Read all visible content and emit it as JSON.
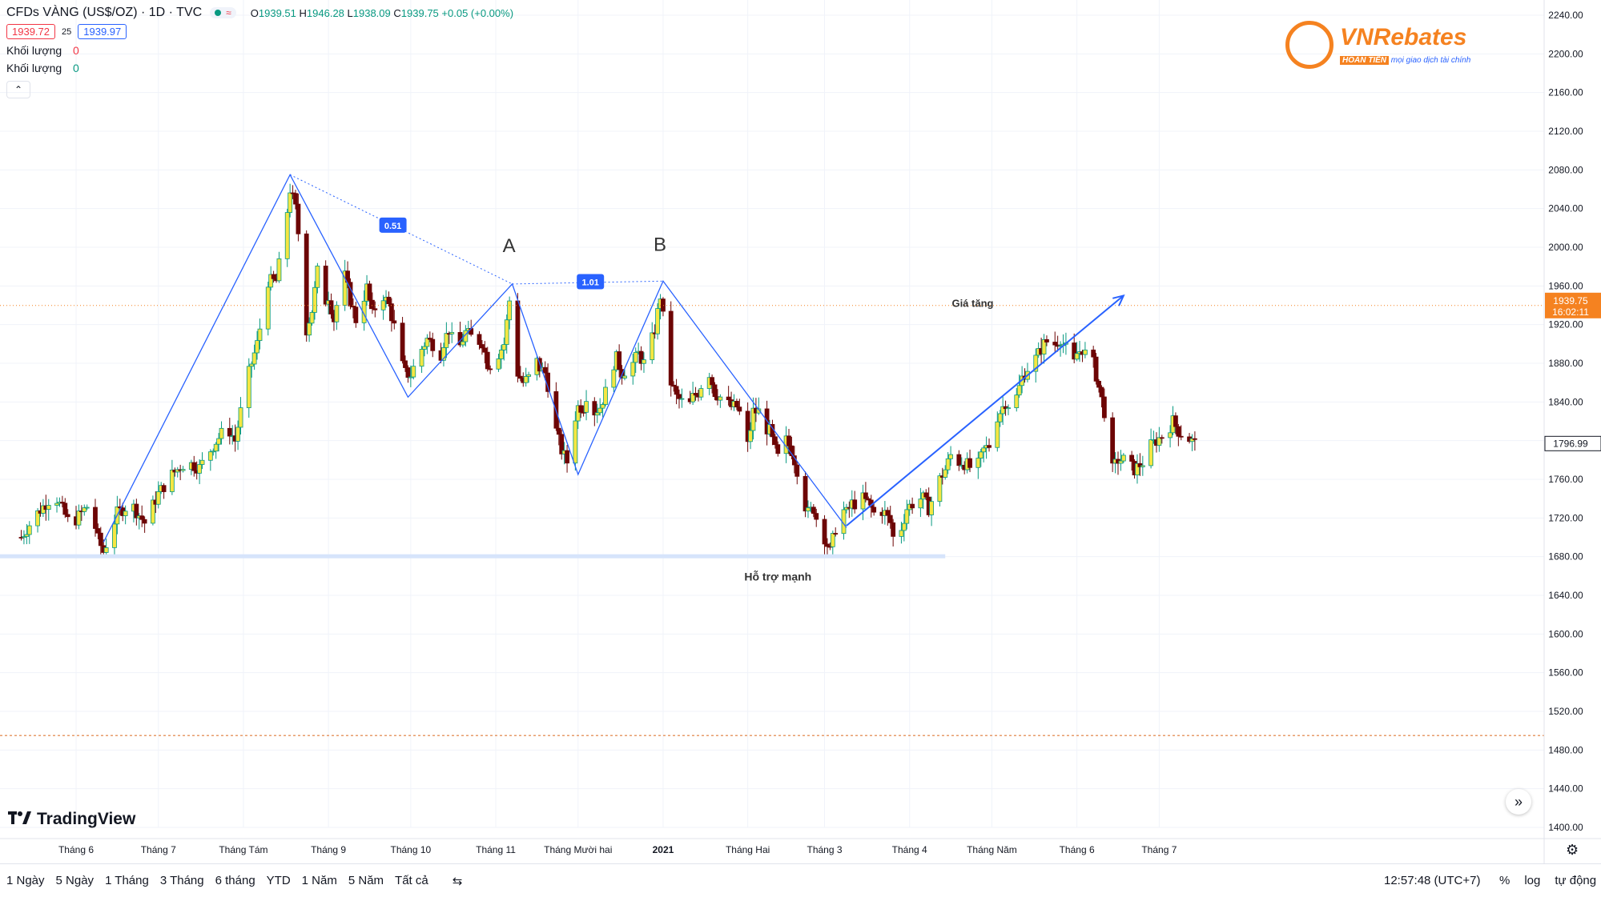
{
  "header": {
    "symbol": "CFDs VÀNG (US$/OZ) · 1D · TVC",
    "ohlc": {
      "open_label": "O",
      "open": "1939.51",
      "high_label": "H",
      "high": "1946.28",
      "low_label": "L",
      "low": "1938.09",
      "close_label": "C",
      "close": "1939.75",
      "change": "+0.05 (+0.00%)"
    },
    "bid": "1939.72",
    "spread": "25",
    "ask": "1939.97",
    "volume_rows": [
      {
        "label": "Khối lượng",
        "value": "0",
        "color": "#f23645"
      },
      {
        "label": "Khối lượng",
        "value": "0",
        "color": "#089981"
      }
    ]
  },
  "brand": {
    "name": "VNRebates",
    "badge": "HOÀN TIỀN",
    "tagline": "mọi giao dịch tài chính"
  },
  "tv_logo": "TradingView",
  "bottom": {
    "periods": [
      "1 Ngày",
      "5 Ngày",
      "1 Tháng",
      "3 Tháng",
      "6 tháng",
      "YTD",
      "1 Năm",
      "5 Năm",
      "Tất cả"
    ],
    "time": "12:57:48 (UTC+7)",
    "percent": "%",
    "log": "log",
    "auto": "tự động"
  },
  "colors": {
    "up": "#089981",
    "down": "#6d0505",
    "up_body": "#f5e642",
    "pattern": "#2962ff",
    "price_line": "#f58220"
  },
  "chart_data": {
    "type": "candlestick",
    "title": "CFDs VÀNG (US$/OZ)",
    "interval": "1D",
    "y_ticks": [
      2240,
      2200,
      2160,
      2120,
      2080,
      2040,
      2000,
      1960,
      1920,
      1880,
      1840,
      1800,
      1760,
      1720,
      1680,
      1640,
      1600,
      1560,
      1520,
      1480,
      1440,
      1400
    ],
    "ylim": [
      1400,
      2240
    ],
    "x_ticks": [
      {
        "label": "Tháng 6",
        "day": 0
      },
      {
        "label": "Tháng 7",
        "day": 30
      },
      {
        "label": "Tháng Tám",
        "day": 61
      },
      {
        "label": "Tháng 9",
        "day": 92
      },
      {
        "label": "Tháng 10",
        "day": 122
      },
      {
        "label": "Tháng 11",
        "day": 153
      },
      {
        "label": "Tháng Mười hai",
        "day": 183
      },
      {
        "label": "2021",
        "day": 214
      },
      {
        "label": "Tháng Hai",
        "day": 245
      },
      {
        "label": "Tháng 3",
        "day": 273
      },
      {
        "label": "Tháng 4",
        "day": 304
      },
      {
        "label": "Tháng Năm",
        "day": 334
      },
      {
        "label": "Tháng 6",
        "day": 365
      },
      {
        "label": "Tháng 7",
        "day": 395
      }
    ],
    "price_path": [
      [
        -20,
        1700
      ],
      [
        -15,
        1722
      ],
      [
        -8,
        1745
      ],
      [
        -2,
        1712
      ],
      [
        5,
        1735
      ],
      [
        8,
        1698
      ],
      [
        10,
        1685
      ],
      [
        15,
        1725
      ],
      [
        20,
        1735
      ],
      [
        25,
        1715
      ],
      [
        30,
        1745
      ],
      [
        35,
        1765
      ],
      [
        40,
        1778
      ],
      [
        45,
        1772
      ],
      [
        50,
        1795
      ],
      [
        55,
        1815
      ],
      [
        58,
        1800
      ],
      [
        62,
        1860
      ],
      [
        66,
        1900
      ],
      [
        70,
        1965
      ],
      [
        73,
        1965
      ],
      [
        76,
        2015
      ],
      [
        78,
        2060
      ],
      [
        80,
        2040
      ],
      [
        82,
        1990
      ],
      [
        84,
        1915
      ],
      [
        86,
        1935
      ],
      [
        88,
        1975
      ],
      [
        90,
        1940
      ],
      [
        92,
        1950
      ],
      [
        94,
        1925
      ],
      [
        96,
        1955
      ],
      [
        98,
        1970
      ],
      [
        100,
        1945
      ],
      [
        102,
        1925
      ],
      [
        104,
        1940
      ],
      [
        106,
        1958
      ],
      [
        108,
        1930
      ],
      [
        110,
        1945
      ],
      [
        112,
        1950
      ],
      [
        114,
        1940
      ],
      [
        116,
        1918
      ],
      [
        118,
        1885
      ],
      [
        120,
        1870
      ],
      [
        122,
        1868
      ],
      [
        125,
        1890
      ],
      [
        128,
        1905
      ],
      [
        130,
        1900
      ],
      [
        132,
        1878
      ],
      [
        134,
        1902
      ],
      [
        136,
        1915
      ],
      [
        138,
        1895
      ],
      [
        140,
        1898
      ],
      [
        142,
        1912
      ],
      [
        145,
        1905
      ],
      [
        148,
        1902
      ],
      [
        150,
        1880
      ],
      [
        152,
        1878
      ],
      [
        154,
        1890
      ],
      [
        156,
        1900
      ],
      [
        158,
        1945
      ],
      [
        159,
        1955
      ],
      [
        161,
        1870
      ],
      [
        163,
        1860
      ],
      [
        165,
        1865
      ],
      [
        167,
        1888
      ],
      [
        169,
        1875
      ],
      [
        171,
        1870
      ],
      [
        173,
        1845
      ],
      [
        175,
        1810
      ],
      [
        177,
        1790
      ],
      [
        179,
        1778
      ],
      [
        181,
        1815
      ],
      [
        183,
        1835
      ],
      [
        185,
        1835
      ],
      [
        187,
        1860
      ],
      [
        189,
        1830
      ],
      [
        191,
        1835
      ],
      [
        193,
        1850
      ],
      [
        195,
        1875
      ],
      [
        197,
        1885
      ],
      [
        199,
        1870
      ],
      [
        201,
        1875
      ],
      [
        203,
        1880
      ],
      [
        205,
        1890
      ],
      [
        207,
        1880
      ],
      [
        209,
        1895
      ],
      [
        211,
        1915
      ],
      [
        213,
        1950
      ],
      [
        215,
        1905
      ],
      [
        217,
        1860
      ],
      [
        219,
        1845
      ],
      [
        221,
        1840
      ],
      [
        223,
        1830
      ],
      [
        225,
        1845
      ],
      [
        227,
        1850
      ],
      [
        229,
        1865
      ],
      [
        231,
        1870
      ],
      [
        233,
        1850
      ],
      [
        235,
        1845
      ],
      [
        237,
        1840
      ],
      [
        239,
        1835
      ],
      [
        241,
        1835
      ],
      [
        243,
        1822
      ],
      [
        245,
        1795
      ],
      [
        247,
        1830
      ],
      [
        249,
        1830
      ],
      [
        251,
        1815
      ],
      [
        253,
        1810
      ],
      [
        255,
        1790
      ],
      [
        257,
        1775
      ],
      [
        259,
        1800
      ],
      [
        261,
        1790
      ],
      [
        263,
        1770
      ],
      [
        265,
        1740
      ],
      [
        267,
        1725
      ],
      [
        269,
        1730
      ],
      [
        271,
        1710
      ],
      [
        273,
        1700
      ],
      [
        275,
        1685
      ],
      [
        277,
        1710
      ],
      [
        279,
        1730
      ],
      [
        281,
        1725
      ],
      [
        283,
        1735
      ],
      [
        285,
        1735
      ],
      [
        287,
        1740
      ],
      [
        289,
        1735
      ],
      [
        291,
        1725
      ],
      [
        293,
        1730
      ],
      [
        295,
        1725
      ],
      [
        297,
        1715
      ],
      [
        299,
        1685
      ],
      [
        301,
        1710
      ],
      [
        303,
        1730
      ],
      [
        305,
        1735
      ],
      [
        307,
        1740
      ],
      [
        309,
        1740
      ],
      [
        311,
        1730
      ],
      [
        313,
        1745
      ],
      [
        315,
        1760
      ],
      [
        317,
        1770
      ],
      [
        319,
        1785
      ],
      [
        321,
        1778
      ],
      [
        323,
        1778
      ],
      [
        325,
        1775
      ],
      [
        327,
        1770
      ],
      [
        329,
        1775
      ],
      [
        331,
        1790
      ],
      [
        333,
        1795
      ],
      [
        335,
        1820
      ],
      [
        337,
        1830
      ],
      [
        339,
        1840
      ],
      [
        341,
        1835
      ],
      [
        343,
        1845
      ],
      [
        345,
        1865
      ],
      [
        347,
        1875
      ],
      [
        349,
        1880
      ],
      [
        351,
        1890
      ],
      [
        353,
        1900
      ],
      [
        355,
        1905
      ],
      [
        357,
        1900
      ],
      [
        359,
        1905
      ],
      [
        361,
        1895
      ],
      [
        363,
        1870
      ],
      [
        365,
        1890
      ],
      [
        367,
        1895
      ],
      [
        369,
        1885
      ],
      [
        371,
        1880
      ],
      [
        373,
        1855
      ],
      [
        375,
        1830
      ],
      [
        376,
        1785
      ],
      [
        378,
        1770
      ],
      [
        380,
        1780
      ],
      [
        382,
        1780
      ],
      [
        384,
        1775
      ],
      [
        386,
        1770
      ],
      [
        388,
        1775
      ],
      [
        390,
        1780
      ],
      [
        392,
        1795
      ],
      [
        394,
        1800
      ],
      [
        396,
        1805
      ],
      [
        398,
        1810
      ],
      [
        400,
        1820
      ],
      [
        402,
        1810
      ],
      [
        404,
        1805
      ],
      [
        406,
        1802
      ],
      [
        408,
        1797
      ]
    ],
    "current_price": "1939.75",
    "current_timer": "16:02:11",
    "last_price": "1796.99",
    "reference_level": 1495,
    "support_level": 1680,
    "pattern_points": [
      [
        10,
        1695
      ],
      [
        78,
        2075
      ],
      [
        121,
        1845
      ],
      [
        159,
        1962
      ],
      [
        183,
        1765
      ],
      [
        214,
        1965
      ],
      [
        281,
        1710
      ]
    ],
    "ratio_labels": [
      "0.51",
      "1.01"
    ],
    "annotations": {
      "a": "A",
      "b": "B",
      "rise": "Giá tăng",
      "support": "Hỗ trợ mạnh"
    },
    "trend_arrow": {
      "from": [
        281,
        1712
      ],
      "to": [
        382,
        1950
      ]
    },
    "legend": "top-left",
    "grid": true
  }
}
